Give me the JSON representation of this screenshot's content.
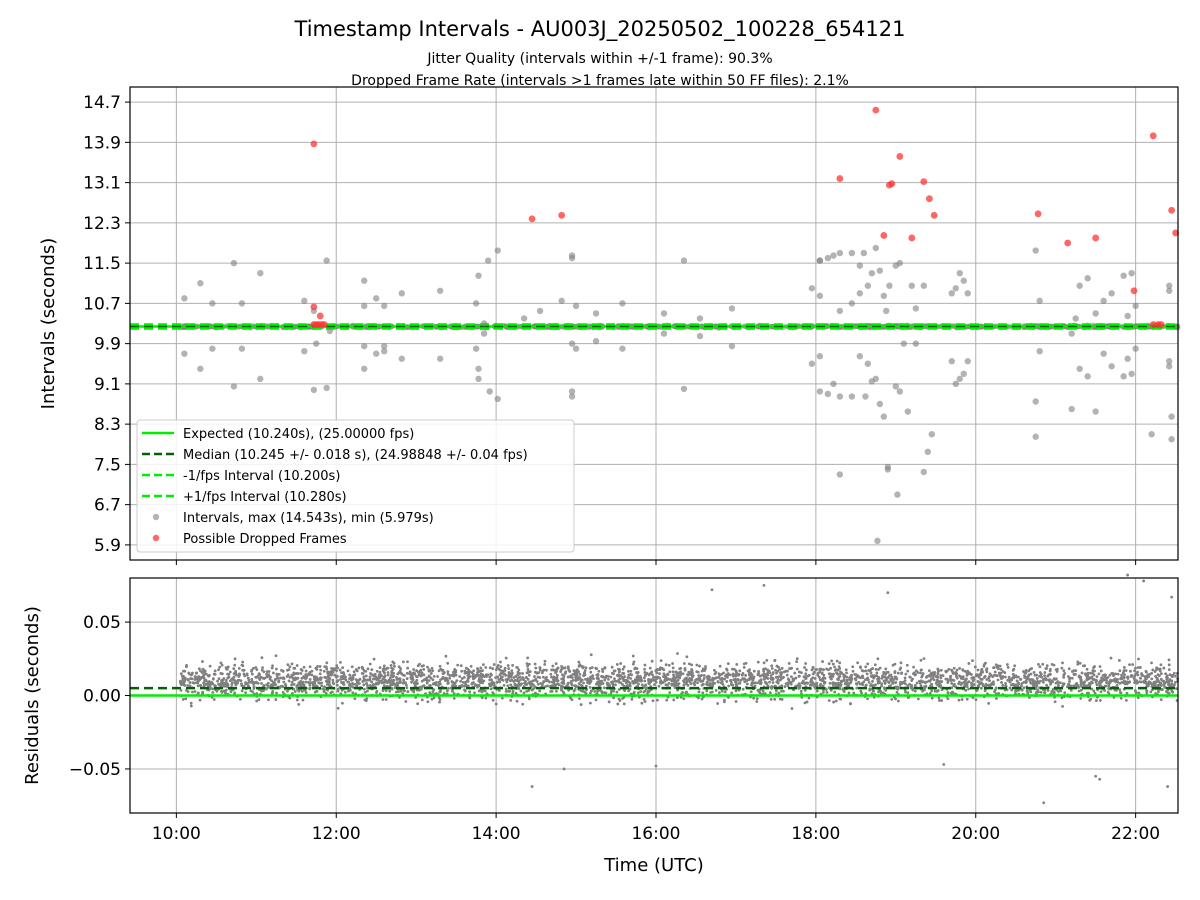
{
  "title": "Timestamp Intervals - AU003J_20250502_100228_654121",
  "subtitle_1": "Jitter Quality (intervals within +/-1 frame): 90.3%",
  "subtitle_2": "Dropped Frame Rate (intervals >1 frames late within 50 FF files): 2.1%",
  "colors": {
    "expected": "#00ee00",
    "median": "#006400",
    "interval_points": "#808080",
    "dropped_points": "#ff3333",
    "grid": "#b0b0b0"
  },
  "chart_data": [
    {
      "type": "scatter",
      "ylabel": "Intervals (seconds)",
      "y_ticks": [
        "5.9",
        "6.7",
        "7.5",
        "8.3",
        "9.1",
        "9.9",
        "10.7",
        "11.5",
        "12.3",
        "13.1",
        "13.9",
        "14.7"
      ],
      "y_tick_values": [
        5.9,
        6.7,
        7.5,
        8.3,
        9.1,
        9.9,
        10.7,
        11.5,
        12.3,
        13.1,
        13.9,
        14.7
      ],
      "ylim": [
        5.6,
        15.0
      ],
      "xlim_hours": [
        9.42,
        22.53
      ],
      "grid": true,
      "legend_placement": "lower-left",
      "legend": [
        "Expected (10.240s), (25.00000 fps)",
        "Median (10.245 +/- 0.018 s), (24.98848 +/- 0.04 fps)",
        "-1/fps Interval (10.200s)",
        "+1/fps Interval (10.280s)",
        "Intervals, max (14.543s), min (5.979s)",
        "Possible Dropped Frames"
      ],
      "reference_lines": {
        "expected": 10.24,
        "median": 10.245,
        "minus_one_frame": 10.2,
        "plus_one_frame": 10.28
      },
      "dense_band": {
        "center": 10.24,
        "half_width": 0.04,
        "x_start": 10.05,
        "x_end": 22.53
      },
      "intervals": [
        [
          10.1,
          10.8
        ],
        [
          10.1,
          9.7
        ],
        [
          10.3,
          11.1
        ],
        [
          10.3,
          9.4
        ],
        [
          10.45,
          10.7
        ],
        [
          10.45,
          9.8
        ],
        [
          10.72,
          11.5
        ],
        [
          10.72,
          9.05
        ],
        [
          10.82,
          10.7
        ],
        [
          10.82,
          9.8
        ],
        [
          11.05,
          11.3
        ],
        [
          11.05,
          9.2
        ],
        [
          11.6,
          10.75
        ],
        [
          11.6,
          9.75
        ],
        [
          11.72,
          10.55
        ],
        [
          11.72,
          8.98
        ],
        [
          11.75,
          9.9
        ],
        [
          11.88,
          11.55
        ],
        [
          11.88,
          9.02
        ],
        [
          11.92,
          10.15
        ],
        [
          12.35,
          11.15
        ],
        [
          12.35,
          9.4
        ],
        [
          12.35,
          10.65
        ],
        [
          12.35,
          9.85
        ],
        [
          12.5,
          10.8
        ],
        [
          12.5,
          9.7
        ],
        [
          12.6,
          10.65
        ],
        [
          12.6,
          9.85
        ],
        [
          12.6,
          9.75
        ],
        [
          12.82,
          10.9
        ],
        [
          12.82,
          9.6
        ],
        [
          13.3,
          10.95
        ],
        [
          13.3,
          9.6
        ],
        [
          13.75,
          10.7
        ],
        [
          13.75,
          9.8
        ],
        [
          13.78,
          11.25
        ],
        [
          13.78,
          9.4
        ],
        [
          13.78,
          9.2
        ],
        [
          13.85,
          10.3
        ],
        [
          13.85,
          10.1
        ],
        [
          13.9,
          11.55
        ],
        [
          13.92,
          8.95
        ],
        [
          14.02,
          11.75
        ],
        [
          14.02,
          8.8
        ],
        [
          14.35,
          10.4
        ],
        [
          14.55,
          10.55
        ],
        [
          14.82,
          10.75
        ],
        [
          14.95,
          11.6
        ],
        [
          14.95,
          11.65
        ],
        [
          14.95,
          8.95
        ],
        [
          14.95,
          8.85
        ],
        [
          14.95,
          9.9
        ],
        [
          15.0,
          10.65
        ],
        [
          15.0,
          9.8
        ],
        [
          15.25,
          10.5
        ],
        [
          15.25,
          9.95
        ],
        [
          15.58,
          10.7
        ],
        [
          15.58,
          9.8
        ],
        [
          16.1,
          10.5
        ],
        [
          16.1,
          10.1
        ],
        [
          16.35,
          11.55
        ],
        [
          16.35,
          9.0
        ],
        [
          16.55,
          10.4
        ],
        [
          16.55,
          10.05
        ],
        [
          16.95,
          10.6
        ],
        [
          16.95,
          9.85
        ],
        [
          17.95,
          11.0
        ],
        [
          17.95,
          9.5
        ],
        [
          18.05,
          11.55
        ],
        [
          18.05,
          11.55
        ],
        [
          18.05,
          10.85
        ],
        [
          18.05,
          9.65
        ],
        [
          18.05,
          8.95
        ],
        [
          18.15,
          11.6
        ],
        [
          18.15,
          8.9
        ],
        [
          18.22,
          11.65
        ],
        [
          18.22,
          9.1
        ],
        [
          18.3,
          11.7
        ],
        [
          18.3,
          7.3
        ],
        [
          18.3,
          8.85
        ],
        [
          18.3,
          10.55
        ],
        [
          18.45,
          11.7
        ],
        [
          18.45,
          8.85
        ],
        [
          18.45,
          10.7
        ],
        [
          18.55,
          11.45
        ],
        [
          18.55,
          10.9
        ],
        [
          18.55,
          9.65
        ],
        [
          18.6,
          11.7
        ],
        [
          18.62,
          8.85
        ],
        [
          18.65,
          11.05
        ],
        [
          18.65,
          9.5
        ],
        [
          18.7,
          11.3
        ],
        [
          18.7,
          9.15
        ],
        [
          18.75,
          11.8
        ],
        [
          18.75,
          9.2
        ],
        [
          18.77,
          5.98
        ],
        [
          18.8,
          11.35
        ],
        [
          18.8,
          8.7
        ],
        [
          18.85,
          10.85
        ],
        [
          18.85,
          8.45
        ],
        [
          18.88,
          10.55
        ],
        [
          18.9,
          7.45
        ],
        [
          18.9,
          7.4
        ],
        [
          18.92,
          11.05
        ],
        [
          19.0,
          11.45
        ],
        [
          19.0,
          9.05
        ],
        [
          19.02,
          6.9
        ],
        [
          19.05,
          11.5
        ],
        [
          19.05,
          8.95
        ],
        [
          19.1,
          9.9
        ],
        [
          19.15,
          8.55
        ],
        [
          19.2,
          11.05
        ],
        [
          19.25,
          10.6
        ],
        [
          19.25,
          9.9
        ],
        [
          19.35,
          11.05
        ],
        [
          19.35,
          7.35
        ],
        [
          19.4,
          7.75
        ],
        [
          19.45,
          8.1
        ],
        [
          19.7,
          10.9
        ],
        [
          19.7,
          9.55
        ],
        [
          19.75,
          11.0
        ],
        [
          19.75,
          9.1
        ],
        [
          19.8,
          11.3
        ],
        [
          19.8,
          9.2
        ],
        [
          19.85,
          11.15
        ],
        [
          19.85,
          9.3
        ],
        [
          19.9,
          10.9
        ],
        [
          19.9,
          9.55
        ],
        [
          20.75,
          11.75
        ],
        [
          20.75,
          8.75
        ],
        [
          20.75,
          8.05
        ],
        [
          20.8,
          10.75
        ],
        [
          20.8,
          9.75
        ],
        [
          21.2,
          10.1
        ],
        [
          21.2,
          8.6
        ],
        [
          21.25,
          10.4
        ],
        [
          21.3,
          11.05
        ],
        [
          21.3,
          9.4
        ],
        [
          21.4,
          11.2
        ],
        [
          21.4,
          9.25
        ],
        [
          21.5,
          8.55
        ],
        [
          21.5,
          10.5
        ],
        [
          21.6,
          10.75
        ],
        [
          21.6,
          9.7
        ],
        [
          21.7,
          10.9
        ],
        [
          21.7,
          9.45
        ],
        [
          21.85,
          11.25
        ],
        [
          21.85,
          9.25
        ],
        [
          21.9,
          10.45
        ],
        [
          21.9,
          9.6
        ],
        [
          21.95,
          11.3
        ],
        [
          21.95,
          9.3
        ],
        [
          22.0,
          10.65
        ],
        [
          22.0,
          9.8
        ],
        [
          22.2,
          8.1
        ],
        [
          22.42,
          11.05
        ],
        [
          22.42,
          10.95
        ],
        [
          22.42,
          9.55
        ],
        [
          22.42,
          9.45
        ],
        [
          22.45,
          8.45
        ],
        [
          22.45,
          8.0
        ]
      ],
      "dropped_frames": [
        [
          11.72,
          13.87
        ],
        [
          11.72,
          10.63
        ],
        [
          11.8,
          10.45
        ],
        [
          11.72,
          10.28
        ],
        [
          11.75,
          10.28
        ],
        [
          11.78,
          10.28
        ],
        [
          11.82,
          10.28
        ],
        [
          11.85,
          10.28
        ],
        [
          14.45,
          12.38
        ],
        [
          14.82,
          12.45
        ],
        [
          18.3,
          13.18
        ],
        [
          18.75,
          14.54
        ],
        [
          18.85,
          12.05
        ],
        [
          18.92,
          13.05
        ],
        [
          18.95,
          13.08
        ],
        [
          19.05,
          13.62
        ],
        [
          19.2,
          12.0
        ],
        [
          19.35,
          13.12
        ],
        [
          19.42,
          12.78
        ],
        [
          19.48,
          12.45
        ],
        [
          20.78,
          12.48
        ],
        [
          21.15,
          11.9
        ],
        [
          21.5,
          12.0
        ],
        [
          21.98,
          10.95
        ],
        [
          22.22,
          14.03
        ],
        [
          22.22,
          10.28
        ],
        [
          22.28,
          10.28
        ],
        [
          22.32,
          10.28
        ],
        [
          22.45,
          12.55
        ],
        [
          22.5,
          12.1
        ]
      ]
    },
    {
      "type": "scatter",
      "xlabel": "Time (UTC)",
      "ylabel": "Residuals (seconds)",
      "x_ticks": [
        "10:00",
        "12:00",
        "14:00",
        "16:00",
        "18:00",
        "20:00",
        "22:00"
      ],
      "x_tick_hours": [
        10,
        12,
        14,
        16,
        18,
        20,
        22
      ],
      "y_ticks": [
        "0.05",
        "0.00",
        "−0.05"
      ],
      "y_tick_values": [
        0.05,
        0.0,
        -0.05
      ],
      "ylim": [
        -0.08,
        0.08
      ],
      "xlim_hours": [
        9.42,
        22.53
      ],
      "grid": true,
      "reference_lines": {
        "expected": 0.0,
        "median": 0.005
      },
      "residual_cloud": {
        "center": 0.01,
        "spread": 0.02,
        "x_start": 10.05,
        "x_end": 22.53,
        "point_count": 3600
      },
      "residual_extremes": [
        [
          14.45,
          -0.062
        ],
        [
          20.85,
          -0.073
        ],
        [
          16.7,
          0.072
        ],
        [
          17.35,
          0.075
        ],
        [
          21.9,
          0.082
        ],
        [
          21.5,
          -0.055
        ],
        [
          21.55,
          -0.057
        ],
        [
          22.4,
          -0.062
        ],
        [
          22.1,
          0.078
        ],
        [
          22.45,
          0.067
        ],
        [
          18.9,
          0.07
        ],
        [
          19.6,
          -0.047
        ],
        [
          16.0,
          -0.048
        ],
        [
          14.85,
          -0.05
        ]
      ]
    }
  ]
}
